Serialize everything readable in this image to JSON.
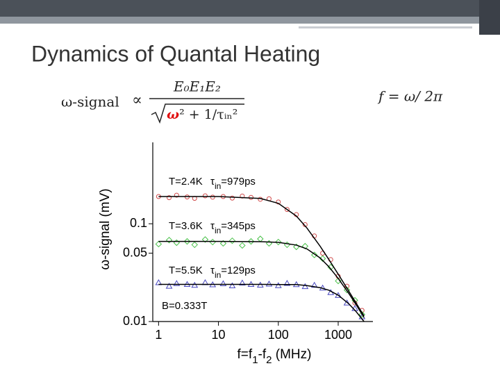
{
  "slide_title": "Dynamics of Quantal Heating",
  "formula": {
    "lhs": "ω-signal",
    "relation": "∝",
    "numerator": "E₀E₁E₂",
    "denominator_omega": "ω",
    "denominator_rest": "² + 1/τᵢₙ²",
    "frequency": "f = ω/ 2π"
  },
  "chart_data": {
    "type": "scatter",
    "xscale": "log",
    "yscale": "log",
    "xlabel": [
      "f=f",
      "1",
      "-f",
      "2",
      " (MHz)"
    ],
    "ylabel": "ω-signal (mV)",
    "xlim": [
      0.8,
      3800
    ],
    "ylim": [
      0.01,
      0.68
    ],
    "xticks": [
      1,
      10,
      100,
      1000
    ],
    "yticks": [
      0.1,
      0.05,
      0.01
    ],
    "annotations": [
      {
        "label": "T=2.4K",
        "tau": "τ",
        "tau_sub": "in",
        "tau_value": "=979ps"
      },
      {
        "label": "T=3.6K",
        "tau": "τ",
        "tau_sub": "in",
        "tau_value": "=345ps"
      },
      {
        "label": "T=5.5K",
        "tau": "τ",
        "tau_sub": "in",
        "tau_value": "=129ps"
      }
    ],
    "note": "B=0.333T",
    "series": [
      {
        "marker": "circle",
        "color": "#d04848",
        "x": [
          1,
          1.5,
          2,
          3,
          4,
          6,
          8,
          12,
          17,
          25,
          35,
          50,
          70,
          100,
          140,
          200,
          280,
          400,
          550,
          750,
          1000,
          1400,
          1900,
          2500
        ],
        "values": [
          0.19,
          0.185,
          0.196,
          0.188,
          0.182,
          0.193,
          0.187,
          0.19,
          0.183,
          0.192,
          0.186,
          0.178,
          0.18,
          0.167,
          0.14,
          0.124,
          0.098,
          0.075,
          0.05,
          0.043,
          0.029,
          0.023,
          0.0155,
          0.013
        ]
      },
      {
        "marker": "diamond",
        "color": "#48c048",
        "x": [
          1,
          1.5,
          2,
          3,
          4,
          6,
          8,
          12,
          17,
          25,
          35,
          50,
          70,
          100,
          140,
          200,
          280,
          400,
          550,
          750,
          1000,
          1400,
          1900,
          2500
        ],
        "values": [
          0.062,
          0.068,
          0.064,
          0.066,
          0.061,
          0.069,
          0.065,
          0.063,
          0.067,
          0.06,
          0.066,
          0.07,
          0.063,
          0.065,
          0.061,
          0.058,
          0.059,
          0.048,
          0.044,
          0.036,
          0.026,
          0.021,
          0.0165,
          0.0118
        ]
      },
      {
        "marker": "triangle",
        "color": "#4848c0",
        "x": [
          1,
          1.5,
          2,
          3,
          4,
          6,
          8,
          12,
          17,
          25,
          35,
          50,
          70,
          100,
          140,
          200,
          280,
          400,
          550,
          750,
          1000,
          1400,
          1900,
          2500
        ],
        "values": [
          0.025,
          0.023,
          0.0245,
          0.024,
          0.0235,
          0.025,
          0.0238,
          0.0244,
          0.0232,
          0.0248,
          0.024,
          0.0236,
          0.0242,
          0.0233,
          0.0246,
          0.0239,
          0.0228,
          0.0235,
          0.022,
          0.0198,
          0.0185,
          0.0155,
          0.0136,
          0.0112
        ]
      },
      {
        "marker": "line",
        "color": "#000000",
        "x": [
          1,
          10,
          50,
          100,
          200,
          300,
          500,
          700,
          1000,
          1500,
          2000,
          2700
        ],
        "values": [
          0.19,
          0.19,
          0.1816,
          0.1618,
          0.1199,
          0.0905,
          0.0588,
          0.043,
          0.0305,
          0.0205,
          0.0154,
          0.0114
        ]
      },
      {
        "marker": "line",
        "color": "#000000",
        "x": [
          1,
          10,
          50,
          100,
          200,
          300,
          500,
          700,
          1000,
          1500,
          2000,
          2700
        ],
        "values": [
          0.066,
          0.066,
          0.0656,
          0.0645,
          0.0605,
          0.0553,
          0.0447,
          0.0363,
          0.0276,
          0.0194,
          0.0148,
          0.011
        ]
      },
      {
        "marker": "line",
        "color": "#000000",
        "x": [
          1,
          10,
          50,
          100,
          200,
          300,
          500,
          700,
          1000,
          1500,
          2000,
          2700
        ],
        "values": [
          0.024,
          0.024,
          0.024,
          0.0239,
          0.0239,
          0.0233,
          0.0222,
          0.0209,
          0.0186,
          0.0152,
          0.0126,
          0.01
        ]
      }
    ]
  }
}
